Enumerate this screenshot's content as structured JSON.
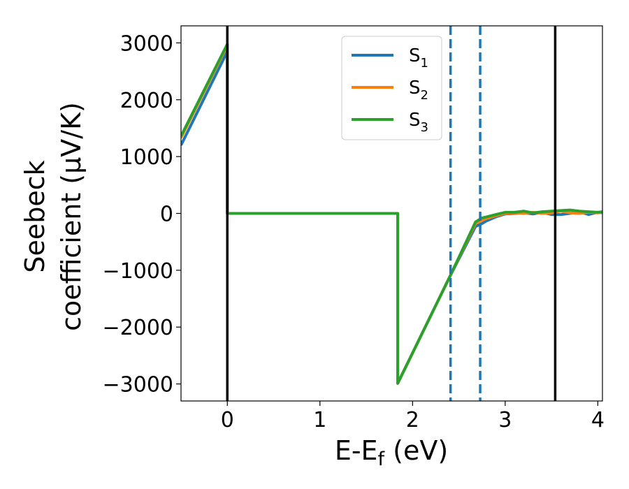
{
  "chart_data": {
    "type": "line",
    "xlabel": "E-E",
    "xlabel_sub": "f",
    "xlabel_unit": " (eV)",
    "ylabel_line1": "Seebeck",
    "ylabel_line2": "coefficient  (μV/K)",
    "xlim": [
      -0.5,
      4.05
    ],
    "ylim": [
      -3300,
      3300
    ],
    "xticks": [
      0,
      1,
      2,
      3,
      4
    ],
    "xtick_labels": [
      "0",
      "1",
      "2",
      "3",
      "4"
    ],
    "yticks": [
      3000,
      2000,
      1000,
      0,
      -1000,
      -2000,
      -3000
    ],
    "ytick_labels": [
      "3000",
      "2000",
      "1000",
      "0",
      "−1000",
      "−2000",
      "−3000"
    ],
    "legend_position": "upper center",
    "series": [
      {
        "name": "S",
        "sub": "1",
        "color": "#1f77b4",
        "points": [
          [
            -0.5,
            1200
          ],
          [
            0.0,
            2850
          ],
          [
            0.0,
            0
          ],
          [
            1.84,
            0
          ],
          [
            1.84,
            -2990
          ],
          [
            2.4,
            -1120
          ],
          [
            2.68,
            -230
          ],
          [
            2.75,
            -180
          ],
          [
            2.8,
            -130
          ],
          [
            2.9,
            -60
          ],
          [
            3.0,
            -10
          ],
          [
            3.1,
            0
          ],
          [
            3.2,
            10
          ],
          [
            3.3,
            -10
          ],
          [
            3.4,
            20
          ],
          [
            3.5,
            -20
          ],
          [
            3.6,
            -20
          ],
          [
            3.7,
            0
          ],
          [
            3.8,
            30
          ],
          [
            3.9,
            -20
          ],
          [
            4.0,
            20
          ],
          [
            4.05,
            10
          ]
        ]
      },
      {
        "name": "S",
        "sub": "2",
        "color": "#ff7f0e",
        "points": [
          [
            -0.5,
            1330
          ],
          [
            0.0,
            2960
          ],
          [
            0.0,
            0
          ],
          [
            1.84,
            0
          ],
          [
            1.84,
            -2990
          ],
          [
            2.4,
            -1120
          ],
          [
            2.68,
            -180
          ],
          [
            2.75,
            -120
          ],
          [
            2.8,
            -90
          ],
          [
            2.9,
            -40
          ],
          [
            3.0,
            0
          ],
          [
            3.1,
            10
          ],
          [
            3.2,
            0
          ],
          [
            3.3,
            20
          ],
          [
            3.4,
            0
          ],
          [
            3.5,
            10
          ],
          [
            3.6,
            40
          ],
          [
            3.7,
            10
          ],
          [
            3.8,
            0
          ],
          [
            3.9,
            20
          ],
          [
            4.0,
            10
          ],
          [
            4.05,
            20
          ]
        ]
      },
      {
        "name": "S",
        "sub": "3",
        "color": "#2ca02c",
        "points": [
          [
            -0.5,
            1360
          ],
          [
            0.0,
            2980
          ],
          [
            0.0,
            0
          ],
          [
            1.84,
            0
          ],
          [
            1.84,
            -2990
          ],
          [
            2.4,
            -1120
          ],
          [
            2.68,
            -150
          ],
          [
            2.75,
            -80
          ],
          [
            2.8,
            -60
          ],
          [
            2.9,
            -20
          ],
          [
            3.0,
            20
          ],
          [
            3.1,
            20
          ],
          [
            3.2,
            40
          ],
          [
            3.3,
            10
          ],
          [
            3.4,
            30
          ],
          [
            3.5,
            40
          ],
          [
            3.6,
            50
          ],
          [
            3.7,
            60
          ],
          [
            3.8,
            40
          ],
          [
            3.9,
            30
          ],
          [
            4.0,
            20
          ],
          [
            4.05,
            30
          ]
        ]
      }
    ],
    "vlines": [
      {
        "x": 0.0,
        "style": "solid",
        "color": "#000000"
      },
      {
        "x": 2.41,
        "style": "dashed",
        "color": "#1f77b4"
      },
      {
        "x": 2.73,
        "style": "dashed",
        "color": "#1f77b4"
      },
      {
        "x": 3.54,
        "style": "solid",
        "color": "#000000"
      }
    ]
  }
}
